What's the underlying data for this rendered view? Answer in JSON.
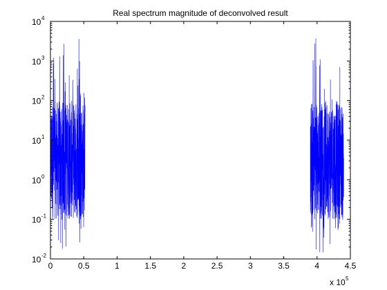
{
  "chart_data": {
    "type": "line",
    "title": "Real spectrum magnitude of deconvolved result",
    "xlabel": "",
    "ylabel": "",
    "x_scale_label": "x 10",
    "x_scale_exponent": "5",
    "y_scale": "log",
    "xlim": [
      0,
      4.5
    ],
    "ylim_exponents": [
      -2,
      4
    ],
    "x_ticks": [
      "0",
      "0.5",
      "1",
      "1.5",
      "2",
      "2.5",
      "3",
      "3.5",
      "4",
      "4.5"
    ],
    "y_ticks": [
      {
        "base": "10",
        "exp": "-2"
      },
      {
        "base": "10",
        "exp": "-1"
      },
      {
        "base": "10",
        "exp": "0"
      },
      {
        "base": "10",
        "exp": "1"
      },
      {
        "base": "10",
        "exp": "2"
      },
      {
        "base": "10",
        "exp": "3"
      },
      {
        "base": "10",
        "exp": "4"
      }
    ],
    "grid": false,
    "legend": "none",
    "series": [
      {
        "color": "#0000ff",
        "clusters": [
          {
            "x_range": [
              0,
              0.52
            ],
            "band_low": 0.1,
            "band_high": 100,
            "peak_max": 5000,
            "trough_min": 0.013
          },
          {
            "x_range": [
              3.9,
              4.4
            ],
            "band_low": 0.1,
            "band_high": 100,
            "peak_max": 5000,
            "trough_min": 0.013
          }
        ]
      }
    ]
  }
}
